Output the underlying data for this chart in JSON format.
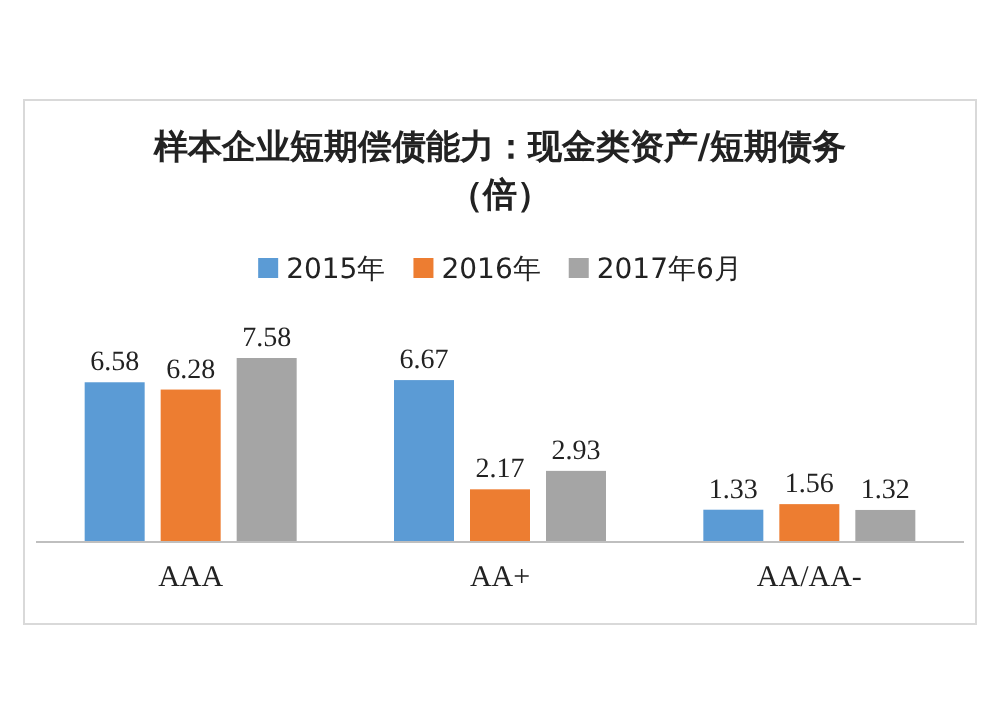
{
  "chart_data": {
    "type": "bar",
    "title": "样本企业短期偿债能力：现金类资产/短期债务（倍）",
    "categories": [
      "AAA",
      "AA+",
      "AA/AA-"
    ],
    "series": [
      {
        "name": "2015年",
        "color": "#5b9bd5",
        "values": [
          6.58,
          6.67,
          1.33
        ]
      },
      {
        "name": "2016年",
        "color": "#ed7d31",
        "values": [
          6.28,
          2.17,
          1.56
        ]
      },
      {
        "name": "2017年6月",
        "color": "#a5a5a5",
        "values": [
          7.58,
          2.93,
          1.32
        ]
      }
    ],
    "data_labels": true,
    "legend": "top"
  }
}
